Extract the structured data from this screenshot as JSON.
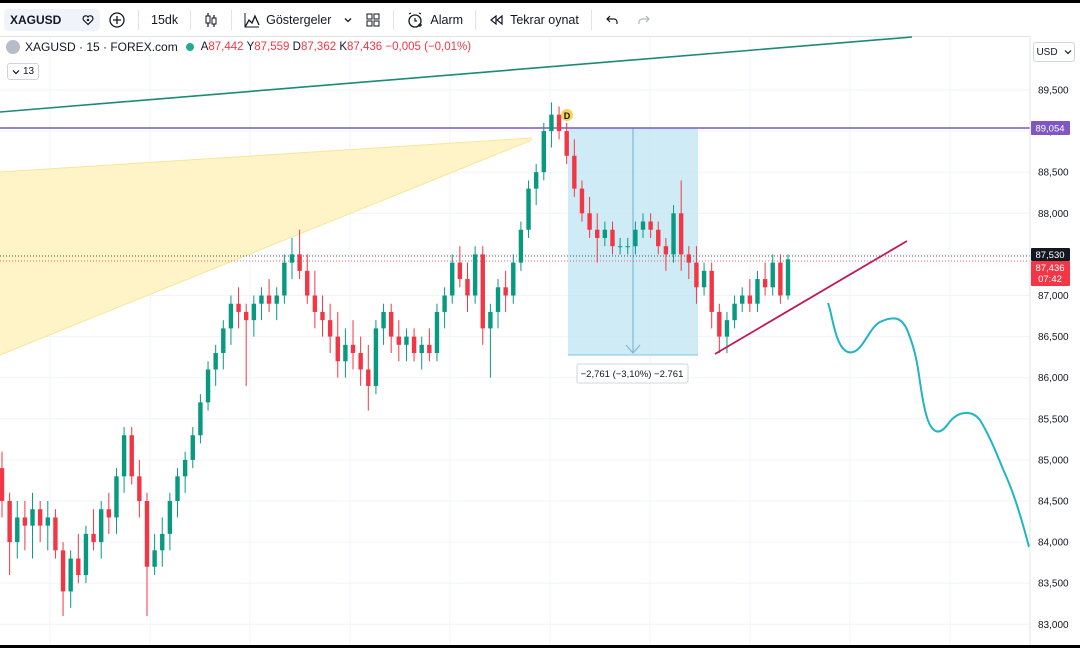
{
  "toolbar": {
    "symbol": "XAGUSD",
    "interval": "15dk",
    "indicators": "Göstergeler",
    "alert": "Alarm",
    "replay": "Tekrar oynat"
  },
  "legend": {
    "title": "XAGUSD · 15 · FOREX.com",
    "open_key": "A",
    "open_val": "87,442",
    "high_key": "Y",
    "high_val": "87,559",
    "low_key": "D",
    "low_val": "87,362",
    "close_key": "K",
    "close_val": "87,436",
    "change": "−0,005 (−0,01%)",
    "collapse_count": "13"
  },
  "price_axis": {
    "currency": "USD",
    "ticks": [
      "89,500",
      "89,000",
      "88,500",
      "88,000",
      "87,500",
      "87,000",
      "86,500",
      "86,000",
      "85,500",
      "85,000",
      "84,500",
      "84,000",
      "83,500",
      "83,000"
    ],
    "horizontal_line_label": "89,054",
    "last_price_label": "87,530",
    "current_price": "87,436",
    "countdown": "07:42",
    "colors": {
      "horizontal_line": "#7e57c2",
      "current_price": "#f23645",
      "last_price": "#131722"
    }
  },
  "measure_label": "−2,761 (−3,10%) −2.761",
  "marker_label": "D",
  "colors": {
    "up": "#089981",
    "down": "#f23645",
    "trend_line": "#1b8a76",
    "support_line": "#c2185b",
    "projection": "#21b5c4",
    "measure_fill": "#bfe6f3",
    "fan_fill": "#fff4c7"
  },
  "chart_data": {
    "type": "candlestick",
    "symbol": "XAGUSD",
    "timeframe": "15",
    "ylim": [
      82.9,
      90.0
    ],
    "candles": [
      {
        "o": 84.9,
        "h": 85.1,
        "l": 84.3,
        "c": 84.5
      },
      {
        "o": 84.5,
        "h": 84.6,
        "l": 83.6,
        "c": 84.0
      },
      {
        "o": 84.0,
        "h": 84.5,
        "l": 83.8,
        "c": 84.3
      },
      {
        "o": 84.3,
        "h": 84.5,
        "l": 83.9,
        "c": 84.2
      },
      {
        "o": 84.2,
        "h": 84.6,
        "l": 83.8,
        "c": 84.4
      },
      {
        "o": 84.4,
        "h": 84.5,
        "l": 84.0,
        "c": 84.2
      },
      {
        "o": 84.2,
        "h": 84.5,
        "l": 83.9,
        "c": 84.3
      },
      {
        "o": 84.3,
        "h": 84.4,
        "l": 83.8,
        "c": 83.9
      },
      {
        "o": 83.9,
        "h": 84.0,
        "l": 83.1,
        "c": 83.4
      },
      {
        "o": 83.4,
        "h": 83.9,
        "l": 83.2,
        "c": 83.8
      },
      {
        "o": 83.8,
        "h": 84.1,
        "l": 83.5,
        "c": 83.6
      },
      {
        "o": 83.6,
        "h": 84.2,
        "l": 83.5,
        "c": 84.1
      },
      {
        "o": 84.1,
        "h": 84.4,
        "l": 83.9,
        "c": 84.0
      },
      {
        "o": 84.0,
        "h": 84.5,
        "l": 83.8,
        "c": 84.4
      },
      {
        "o": 84.4,
        "h": 84.6,
        "l": 84.1,
        "c": 84.3
      },
      {
        "o": 84.3,
        "h": 84.9,
        "l": 84.1,
        "c": 84.8
      },
      {
        "o": 84.8,
        "h": 85.4,
        "l": 84.6,
        "c": 85.3
      },
      {
        "o": 85.3,
        "h": 85.4,
        "l": 84.7,
        "c": 84.8
      },
      {
        "o": 84.8,
        "h": 85.0,
        "l": 84.3,
        "c": 84.5
      },
      {
        "o": 84.5,
        "h": 84.6,
        "l": 83.1,
        "c": 83.7
      },
      {
        "o": 83.7,
        "h": 84.1,
        "l": 83.6,
        "c": 83.9
      },
      {
        "o": 83.9,
        "h": 84.3,
        "l": 83.7,
        "c": 84.1
      },
      {
        "o": 84.1,
        "h": 84.6,
        "l": 83.9,
        "c": 84.5
      },
      {
        "o": 84.5,
        "h": 84.9,
        "l": 84.3,
        "c": 84.8
      },
      {
        "o": 84.8,
        "h": 85.1,
        "l": 84.6,
        "c": 85.0
      },
      {
        "o": 85.0,
        "h": 85.4,
        "l": 84.9,
        "c": 85.3
      },
      {
        "o": 85.3,
        "h": 85.8,
        "l": 85.2,
        "c": 85.7
      },
      {
        "o": 85.7,
        "h": 86.2,
        "l": 85.6,
        "c": 86.1
      },
      {
        "o": 86.1,
        "h": 86.4,
        "l": 85.9,
        "c": 86.3
      },
      {
        "o": 86.3,
        "h": 86.7,
        "l": 86.1,
        "c": 86.6
      },
      {
        "o": 86.6,
        "h": 87.0,
        "l": 86.4,
        "c": 86.9
      },
      {
        "o": 86.9,
        "h": 87.1,
        "l": 86.6,
        "c": 86.8
      },
      {
        "o": 86.8,
        "h": 86.9,
        "l": 85.9,
        "c": 86.7
      },
      {
        "o": 86.7,
        "h": 87.0,
        "l": 86.5,
        "c": 86.9
      },
      {
        "o": 86.9,
        "h": 87.1,
        "l": 86.7,
        "c": 87.0
      },
      {
        "o": 87.0,
        "h": 87.2,
        "l": 86.8,
        "c": 86.9
      },
      {
        "o": 86.9,
        "h": 87.1,
        "l": 86.7,
        "c": 87.0
      },
      {
        "o": 87.0,
        "h": 87.5,
        "l": 86.9,
        "c": 87.4
      },
      {
        "o": 87.4,
        "h": 87.7,
        "l": 87.2,
        "c": 87.5
      },
      {
        "o": 87.5,
        "h": 87.8,
        "l": 87.2,
        "c": 87.3
      },
      {
        "o": 87.3,
        "h": 87.5,
        "l": 86.9,
        "c": 87.0
      },
      {
        "o": 87.0,
        "h": 87.3,
        "l": 86.6,
        "c": 86.8
      },
      {
        "o": 86.8,
        "h": 87.0,
        "l": 86.5,
        "c": 86.7
      },
      {
        "o": 86.7,
        "h": 86.9,
        "l": 86.3,
        "c": 86.5
      },
      {
        "o": 86.5,
        "h": 86.8,
        "l": 86.0,
        "c": 86.2
      },
      {
        "o": 86.2,
        "h": 86.6,
        "l": 86.0,
        "c": 86.4
      },
      {
        "o": 86.4,
        "h": 86.7,
        "l": 86.1,
        "c": 86.3
      },
      {
        "o": 86.3,
        "h": 86.5,
        "l": 85.9,
        "c": 86.1
      },
      {
        "o": 86.1,
        "h": 86.4,
        "l": 85.6,
        "c": 85.9
      },
      {
        "o": 85.9,
        "h": 86.7,
        "l": 85.8,
        "c": 86.6
      },
      {
        "o": 86.6,
        "h": 86.9,
        "l": 86.4,
        "c": 86.8
      },
      {
        "o": 86.8,
        "h": 86.9,
        "l": 86.3,
        "c": 86.5
      },
      {
        "o": 86.5,
        "h": 86.7,
        "l": 86.2,
        "c": 86.4
      },
      {
        "o": 86.4,
        "h": 86.6,
        "l": 86.2,
        "c": 86.5
      },
      {
        "o": 86.5,
        "h": 86.6,
        "l": 86.2,
        "c": 86.3
      },
      {
        "o": 86.3,
        "h": 86.5,
        "l": 86.1,
        "c": 86.4
      },
      {
        "o": 86.4,
        "h": 86.6,
        "l": 86.2,
        "c": 86.3
      },
      {
        "o": 86.3,
        "h": 86.9,
        "l": 86.2,
        "c": 86.8
      },
      {
        "o": 86.8,
        "h": 87.1,
        "l": 86.6,
        "c": 87.0
      },
      {
        "o": 87.0,
        "h": 87.5,
        "l": 86.9,
        "c": 87.4
      },
      {
        "o": 87.4,
        "h": 87.6,
        "l": 87.1,
        "c": 87.2
      },
      {
        "o": 87.2,
        "h": 87.4,
        "l": 86.8,
        "c": 87.0
      },
      {
        "o": 87.0,
        "h": 87.6,
        "l": 86.9,
        "c": 87.5
      },
      {
        "o": 87.5,
        "h": 87.6,
        "l": 86.4,
        "c": 86.6
      },
      {
        "o": 86.6,
        "h": 86.9,
        "l": 86.0,
        "c": 86.8
      },
      {
        "o": 86.8,
        "h": 87.2,
        "l": 86.6,
        "c": 87.1
      },
      {
        "o": 87.1,
        "h": 87.3,
        "l": 86.8,
        "c": 87.0
      },
      {
        "o": 87.0,
        "h": 87.5,
        "l": 86.9,
        "c": 87.4
      },
      {
        "o": 87.4,
        "h": 87.9,
        "l": 87.3,
        "c": 87.8
      },
      {
        "o": 87.8,
        "h": 88.4,
        "l": 87.7,
        "c": 88.3
      },
      {
        "o": 88.3,
        "h": 88.6,
        "l": 88.1,
        "c": 88.5
      },
      {
        "o": 88.5,
        "h": 89.1,
        "l": 88.4,
        "c": 89.0
      },
      {
        "o": 89.0,
        "h": 89.35,
        "l": 88.8,
        "c": 89.2
      },
      {
        "o": 89.2,
        "h": 89.3,
        "l": 88.9,
        "c": 89.0
      },
      {
        "o": 89.0,
        "h": 89.1,
        "l": 88.6,
        "c": 88.7
      },
      {
        "o": 88.7,
        "h": 88.9,
        "l": 88.2,
        "c": 88.3
      },
      {
        "o": 88.3,
        "h": 88.4,
        "l": 87.9,
        "c": 88.0
      },
      {
        "o": 88.0,
        "h": 88.2,
        "l": 87.7,
        "c": 87.8
      },
      {
        "o": 87.8,
        "h": 88.0,
        "l": 87.4,
        "c": 87.7
      },
      {
        "o": 87.7,
        "h": 87.9,
        "l": 87.6,
        "c": 87.8
      },
      {
        "o": 87.8,
        "h": 87.9,
        "l": 87.5,
        "c": 87.6
      },
      {
        "o": 87.6,
        "h": 87.7,
        "l": 87.5,
        "c": 87.6
      },
      {
        "o": 87.6,
        "h": 87.7,
        "l": 87.5,
        "c": 87.6
      },
      {
        "o": 87.6,
        "h": 87.9,
        "l": 87.5,
        "c": 87.8
      },
      {
        "o": 87.8,
        "h": 88.0,
        "l": 87.7,
        "c": 87.9
      },
      {
        "o": 87.9,
        "h": 88.0,
        "l": 87.7,
        "c": 87.8
      },
      {
        "o": 87.8,
        "h": 87.9,
        "l": 87.5,
        "c": 87.6
      },
      {
        "o": 87.6,
        "h": 87.7,
        "l": 87.3,
        "c": 87.5
      },
      {
        "o": 87.5,
        "h": 88.1,
        "l": 87.4,
        "c": 88.0
      },
      {
        "o": 88.0,
        "h": 88.4,
        "l": 87.3,
        "c": 87.5
      },
      {
        "o": 87.5,
        "h": 87.6,
        "l": 87.2,
        "c": 87.4
      },
      {
        "o": 87.4,
        "h": 87.6,
        "l": 86.9,
        "c": 87.1
      },
      {
        "o": 87.1,
        "h": 87.4,
        "l": 87.0,
        "c": 87.3
      },
      {
        "o": 87.3,
        "h": 87.4,
        "l": 86.6,
        "c": 86.8
      },
      {
        "o": 86.8,
        "h": 86.9,
        "l": 86.3,
        "c": 86.5
      },
      {
        "o": 86.5,
        "h": 86.8,
        "l": 86.3,
        "c": 86.7
      },
      {
        "o": 86.7,
        "h": 87.0,
        "l": 86.6,
        "c": 86.9
      },
      {
        "o": 86.9,
        "h": 87.1,
        "l": 86.8,
        "c": 87.0
      },
      {
        "o": 87.0,
        "h": 87.2,
        "l": 86.8,
        "c": 86.9
      },
      {
        "o": 86.9,
        "h": 87.3,
        "l": 86.8,
        "c": 87.2
      },
      {
        "o": 87.2,
        "h": 87.4,
        "l": 87.0,
        "c": 87.1
      },
      {
        "o": 87.1,
        "h": 87.5,
        "l": 87.0,
        "c": 87.4
      },
      {
        "o": 87.4,
        "h": 87.5,
        "l": 86.9,
        "c": 87.0
      },
      {
        "o": 87.0,
        "h": 87.5,
        "l": 86.95,
        "c": 87.44
      }
    ],
    "annotations": {
      "horizontal_line": 89.054,
      "measure_change": "−2,761 (−3,10%) −2.761",
      "marker": "D"
    }
  }
}
